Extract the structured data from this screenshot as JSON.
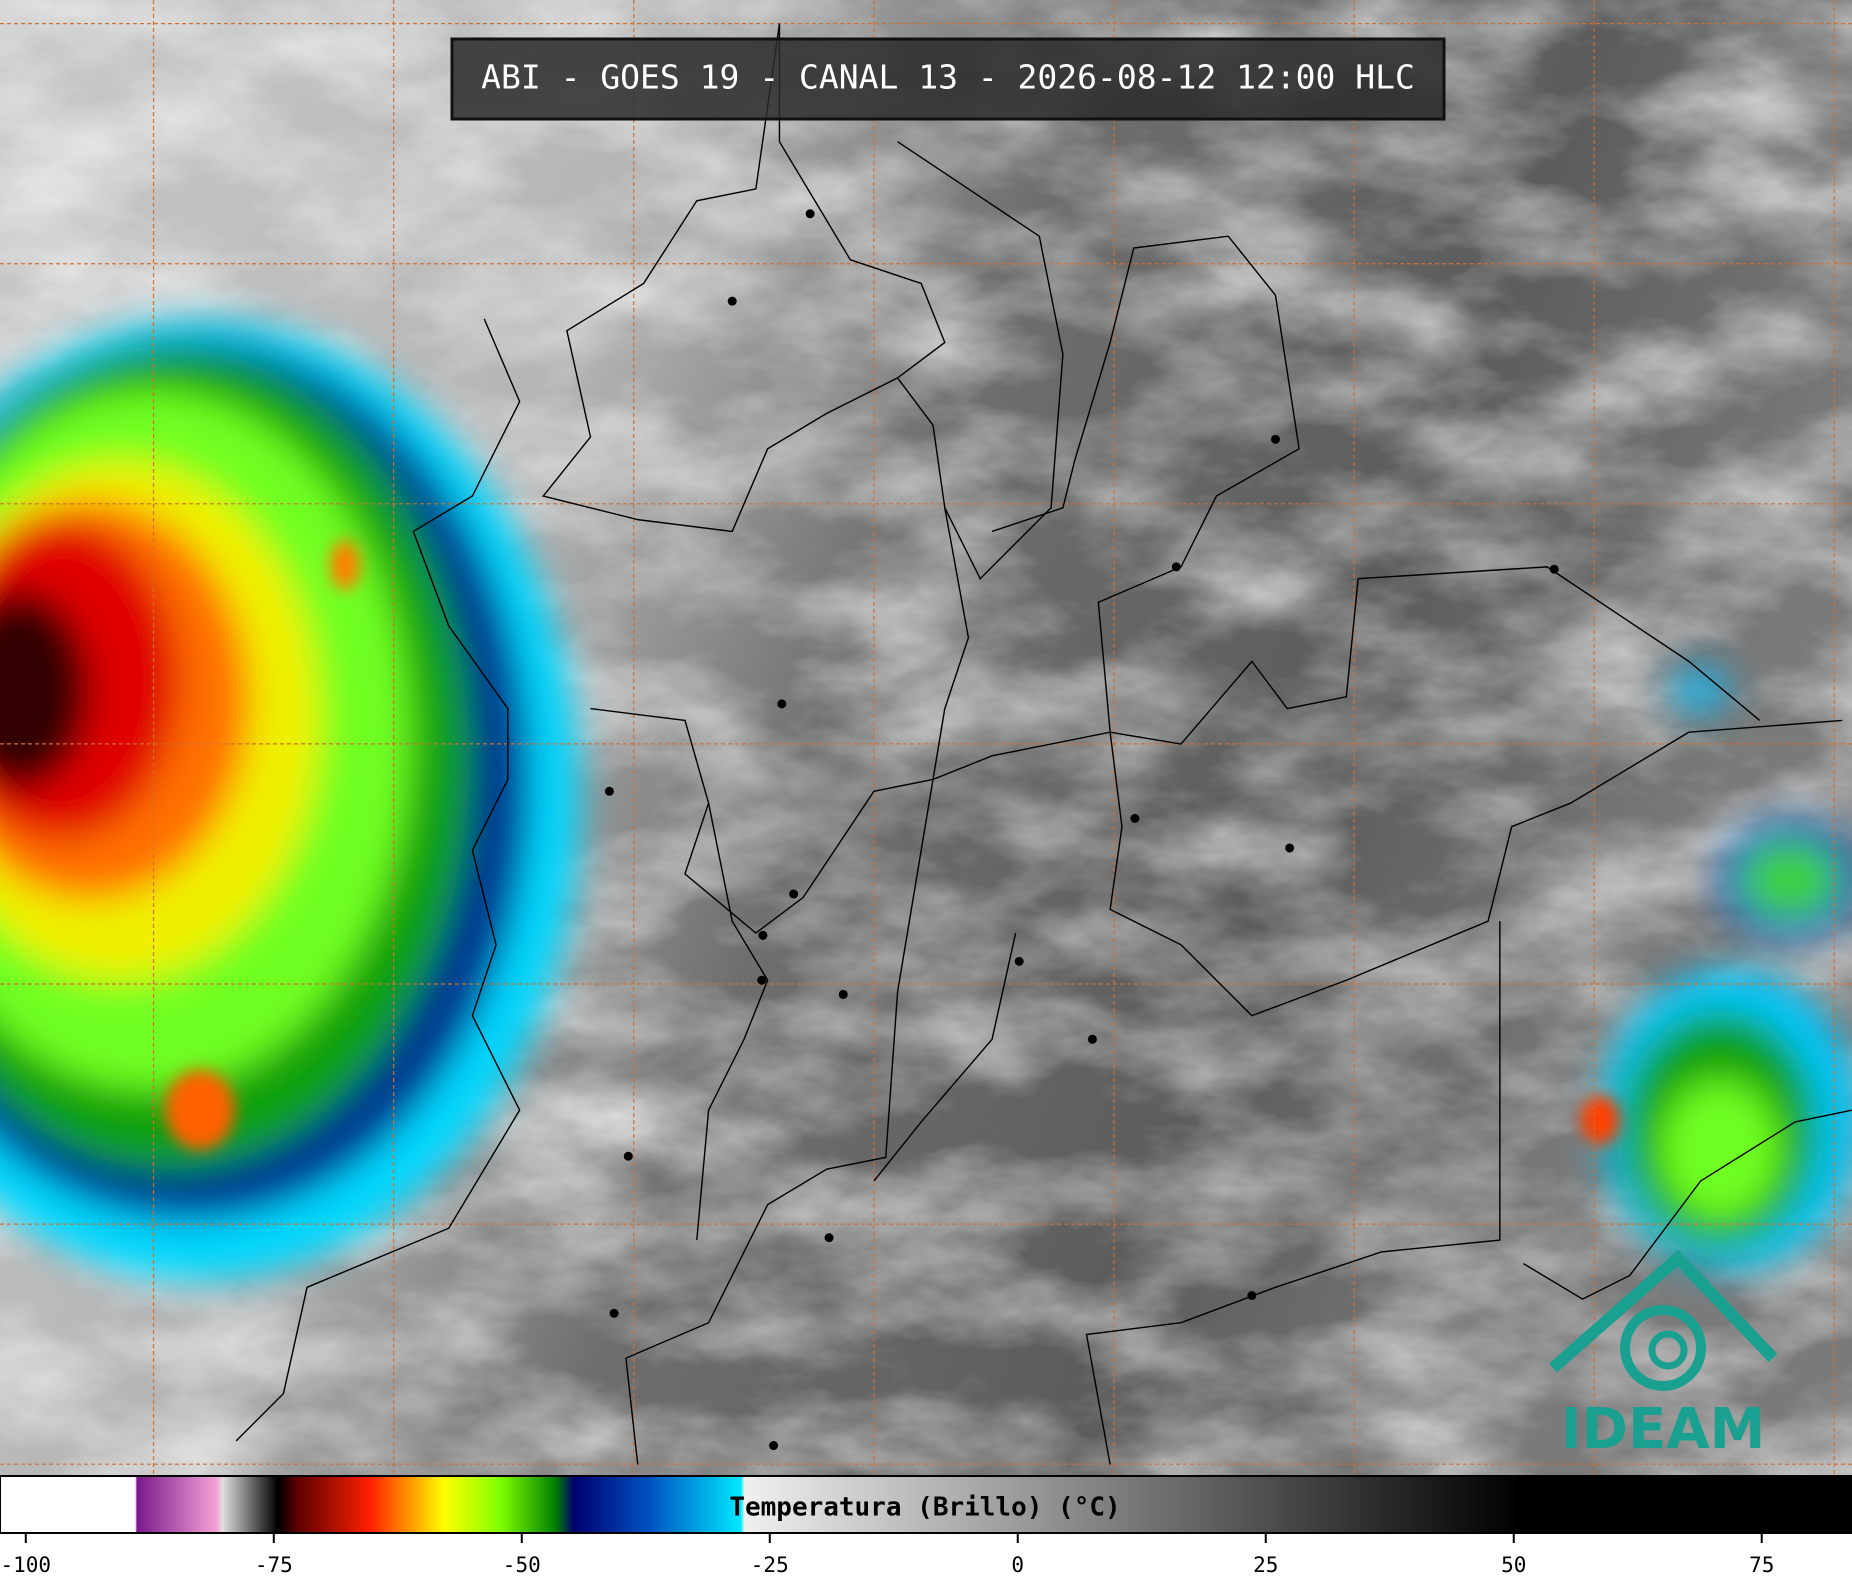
{
  "title": "ABI - GOES 19 - CANAL 13 - 2026-08-12 12:00 HLC",
  "colorbar": {
    "label": "Temperatura (Brillo) (°C)",
    "lim": [
      -102.6,
      84.1
    ],
    "ticks": [
      -100,
      -75,
      -50,
      -25,
      0,
      25,
      50,
      75
    ]
  },
  "logo": "IDEAM"
}
